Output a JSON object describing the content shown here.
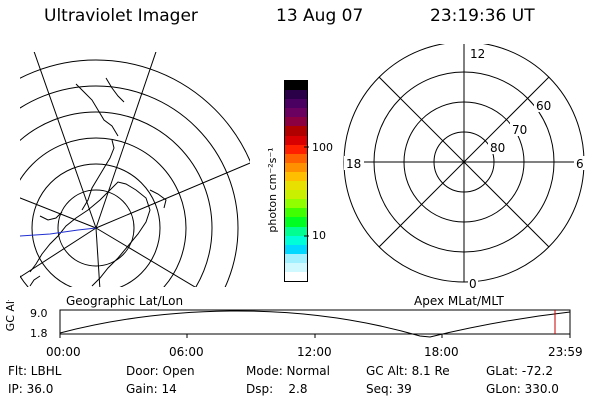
{
  "header": {
    "instrument": "Ultraviolet Imager",
    "date": "13 Aug 07",
    "time": "23:19:36 UT"
  },
  "left_panel": {
    "label": "Geographic Lat/Lon"
  },
  "right_panel": {
    "label": "Apex MLat/MLT",
    "mlt_labels": {
      "top": "12",
      "left": "18",
      "right": "6",
      "bottom": "0"
    },
    "mlat_labels": [
      "60",
      "70",
      "80"
    ]
  },
  "colorbar": {
    "unit_label": "photon cm⁻²s⁻¹",
    "tick_labels": [
      "100",
      "10"
    ],
    "colors": [
      "#000000",
      "#2a0048",
      "#4a0060",
      "#6a0060",
      "#8a0040",
      "#b00000",
      "#d80000",
      "#ff2000",
      "#ff6000",
      "#ff9000",
      "#ffbf00",
      "#e8e000",
      "#c8f000",
      "#90ff00",
      "#40ff00",
      "#00ff20",
      "#00ff90",
      "#00ffd8",
      "#00d8ff",
      "#a0f0ff",
      "#d0f8ff",
      "#ffffff"
    ]
  },
  "altitude_plot": {
    "ylabel": "GC Alt",
    "y_ticks": [
      "9.0",
      "1.8"
    ],
    "x_ticks": [
      "00:00",
      "06:00",
      "12:00",
      "18:00",
      "23:59"
    ],
    "marker_color": "#cc0000"
  },
  "status": {
    "filter": "Flt: LBHL",
    "door": "Door: Open",
    "mode": "Mode: Normal",
    "gc_alt": "GC Alt: 8.1 Re",
    "glat": "GLat: -72.2",
    "ip": "IP: 36.0",
    "gain": "Gain: 14",
    "dsp": "Dsp:    2.8",
    "seq": "Seq: 39",
    "glon": "GLon: 330.0"
  }
}
